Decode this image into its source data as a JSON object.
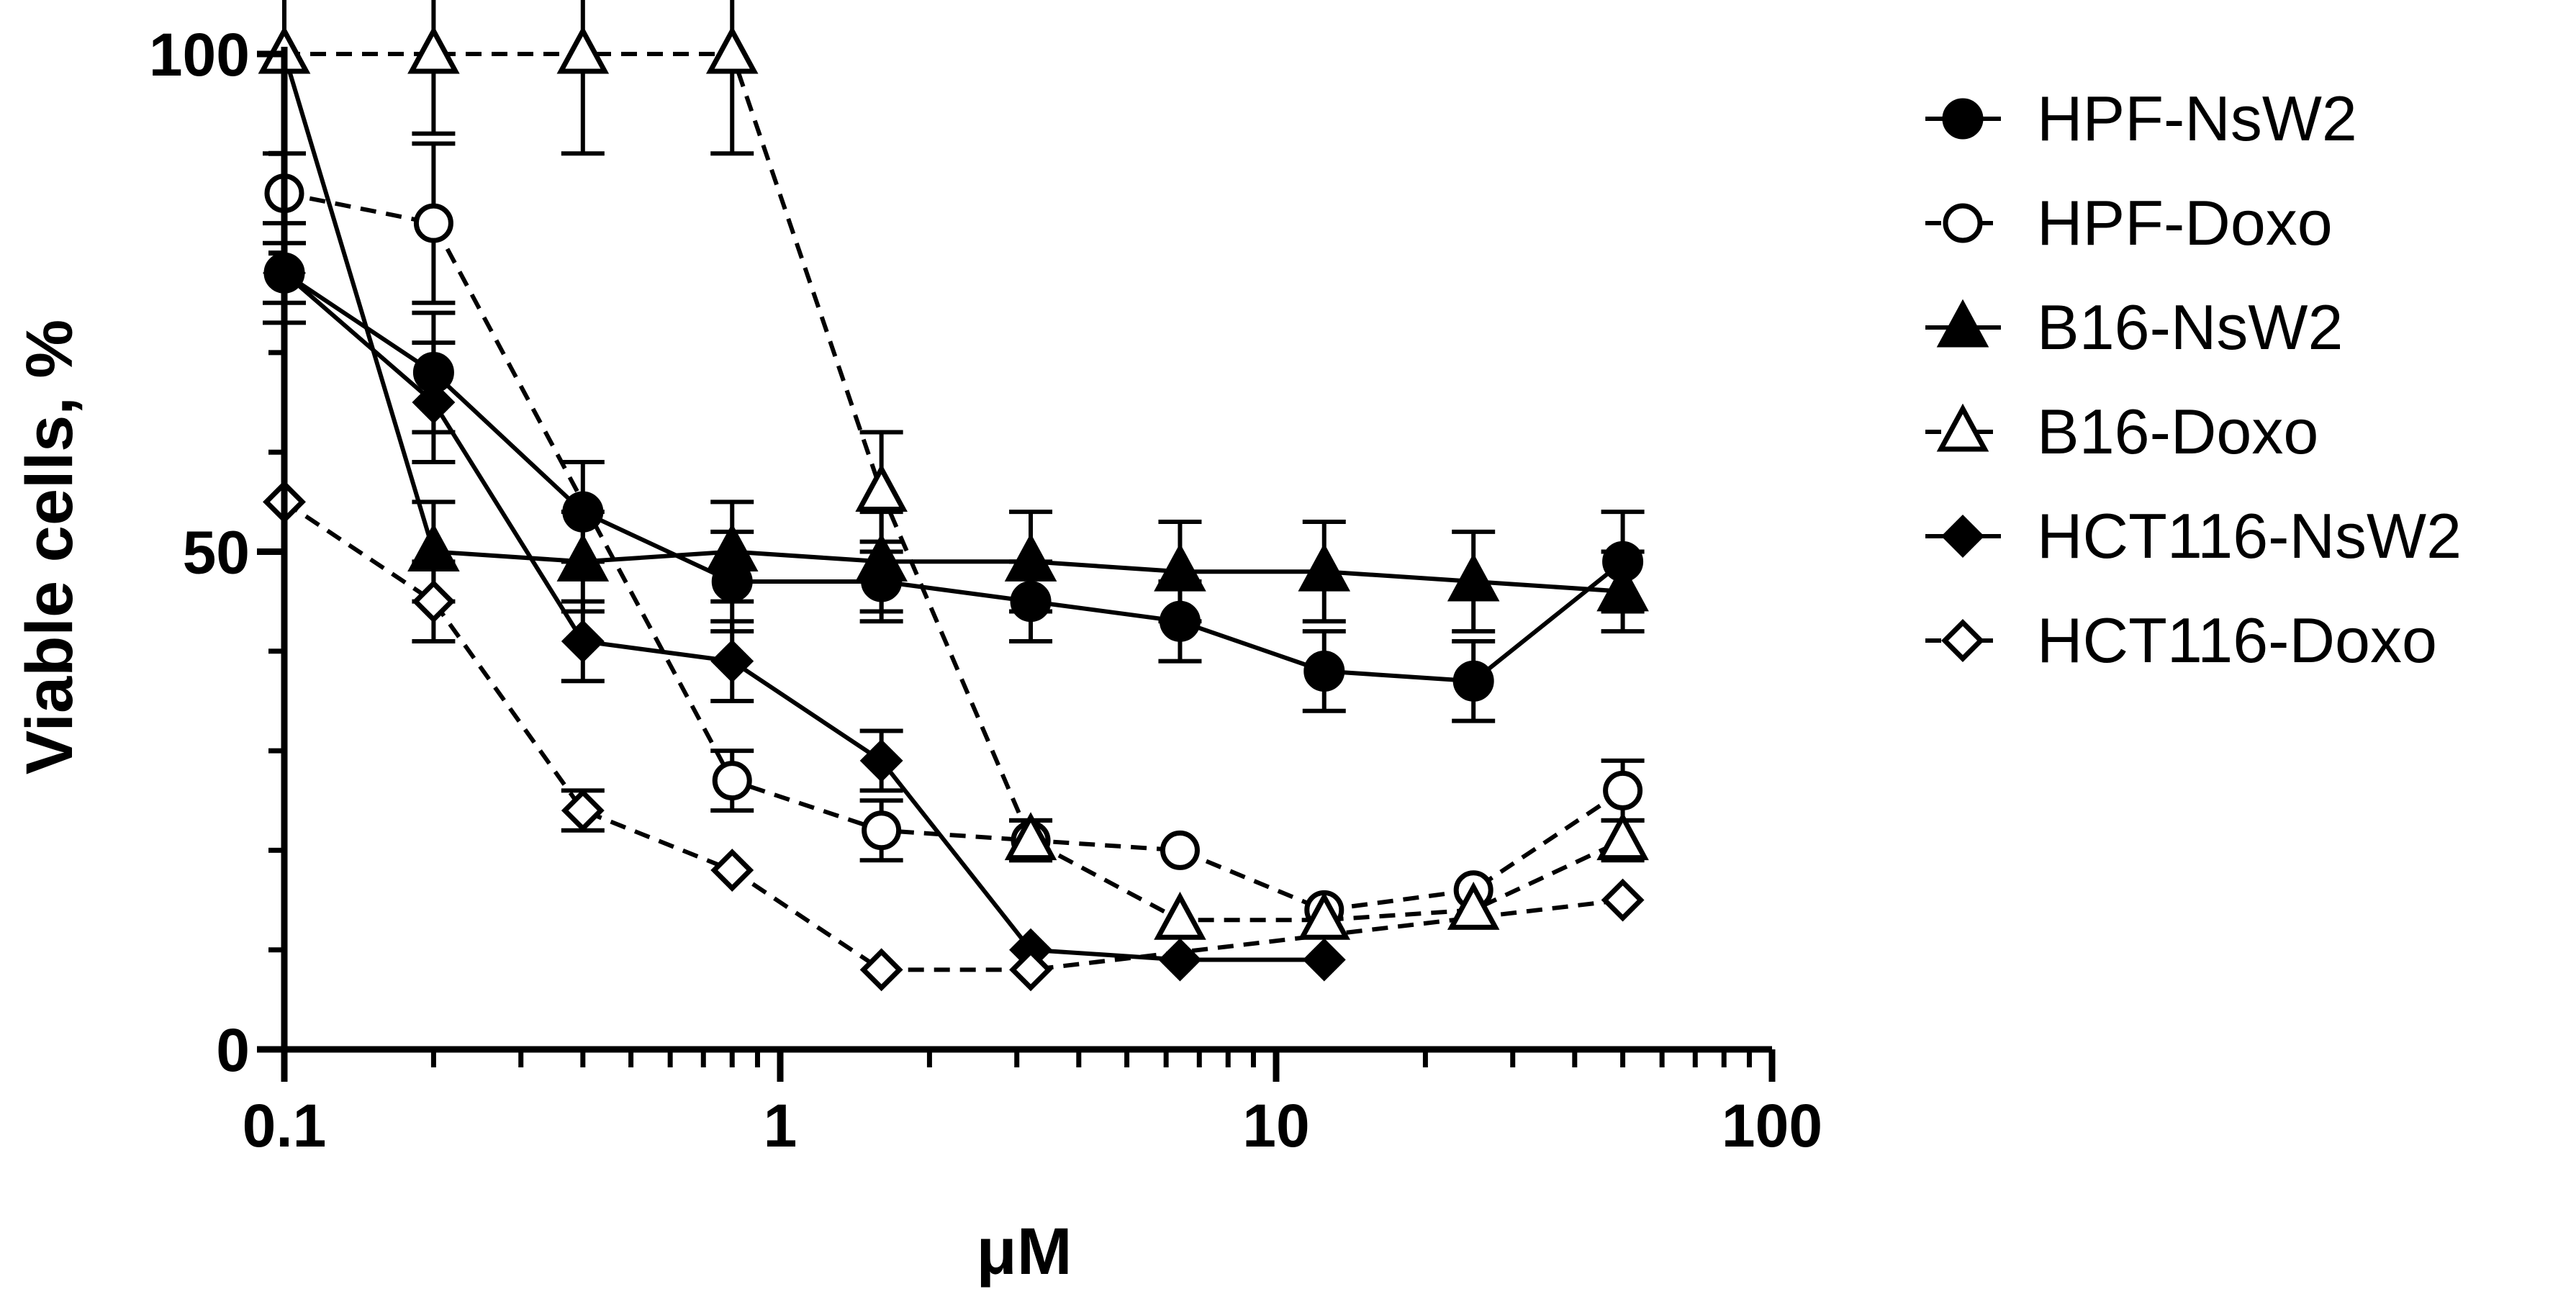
{
  "chart_data": {
    "type": "line",
    "title": "",
    "xlabel": "μM",
    "ylabel": "Viable cells, %",
    "xscale": "log",
    "xlim": [
      0.1,
      100
    ],
    "ylim": [
      0,
      100
    ],
    "xticks": [
      0.1,
      1,
      10,
      100
    ],
    "xtick_labels": [
      "0.1",
      "1",
      "10",
      "100"
    ],
    "yticks": [
      0,
      50,
      100
    ],
    "ytick_labels": [
      "0",
      "50",
      "100"
    ],
    "legend_position": "right",
    "series": [
      {
        "name": "HPF-NsW2",
        "marker": "circle",
        "filled": true,
        "dashed": false,
        "x": [
          0.1,
          0.2,
          0.4,
          0.8,
          1.6,
          3.2,
          6.4,
          12.5,
          25,
          50
        ],
        "y": [
          78,
          68,
          54,
          47,
          47,
          45,
          43,
          38,
          37,
          49
        ],
        "err": [
          3,
          6,
          5,
          5,
          4,
          4,
          4,
          4,
          4,
          5
        ]
      },
      {
        "name": "HPF-Doxo",
        "marker": "circle",
        "filled": false,
        "dashed": true,
        "x": [
          0.1,
          0.2,
          0.8,
          1.6,
          3.2,
          6.4,
          12.5,
          25,
          50
        ],
        "y": [
          86,
          83,
          27,
          22,
          21,
          20,
          14,
          16,
          26
        ],
        "err": [
          0,
          8,
          3,
          3,
          2,
          0,
          0,
          0,
          3
        ]
      },
      {
        "name": "B16-NsW2",
        "marker": "triangle",
        "filled": true,
        "dashed": false,
        "x": [
          0.1,
          0.2,
          0.4,
          0.8,
          1.6,
          3.2,
          6.4,
          12.5,
          25,
          50
        ],
        "y": [
          100,
          50,
          49,
          50,
          49,
          49,
          48,
          48,
          47,
          46
        ],
        "err": [
          10,
          5,
          5,
          5,
          5,
          5,
          5,
          5,
          5,
          4
        ]
      },
      {
        "name": "B16-Doxo",
        "marker": "triangle",
        "filled": false,
        "dashed": true,
        "x": [
          0.1,
          0.2,
          0.4,
          0.8,
          1.6,
          3.2,
          6.4,
          12.5,
          25,
          50
        ],
        "y": [
          100,
          100,
          100,
          100,
          56,
          21,
          13,
          13,
          14,
          21
        ],
        "err": [
          0,
          8,
          10,
          10,
          6,
          2,
          0,
          0,
          0,
          2
        ]
      },
      {
        "name": "HCT116-NsW2",
        "marker": "diamond",
        "filled": true,
        "dashed": false,
        "x": [
          0.1,
          0.2,
          0.4,
          0.8,
          1.6,
          3.2,
          6.4,
          12.5
        ],
        "y": [
          78,
          65,
          41,
          39,
          29,
          10,
          9,
          9
        ],
        "err": [
          5,
          6,
          4,
          4,
          3,
          0,
          0,
          0
        ]
      },
      {
        "name": "HCT116-Doxo",
        "marker": "diamond",
        "filled": false,
        "dashed": true,
        "x": [
          0.1,
          0.2,
          0.4,
          0.8,
          1.6,
          3.2,
          50
        ],
        "y": [
          55,
          45,
          24,
          18,
          8,
          8,
          15
        ],
        "err": [
          0,
          4,
          2,
          0,
          0,
          0,
          0
        ]
      }
    ]
  }
}
